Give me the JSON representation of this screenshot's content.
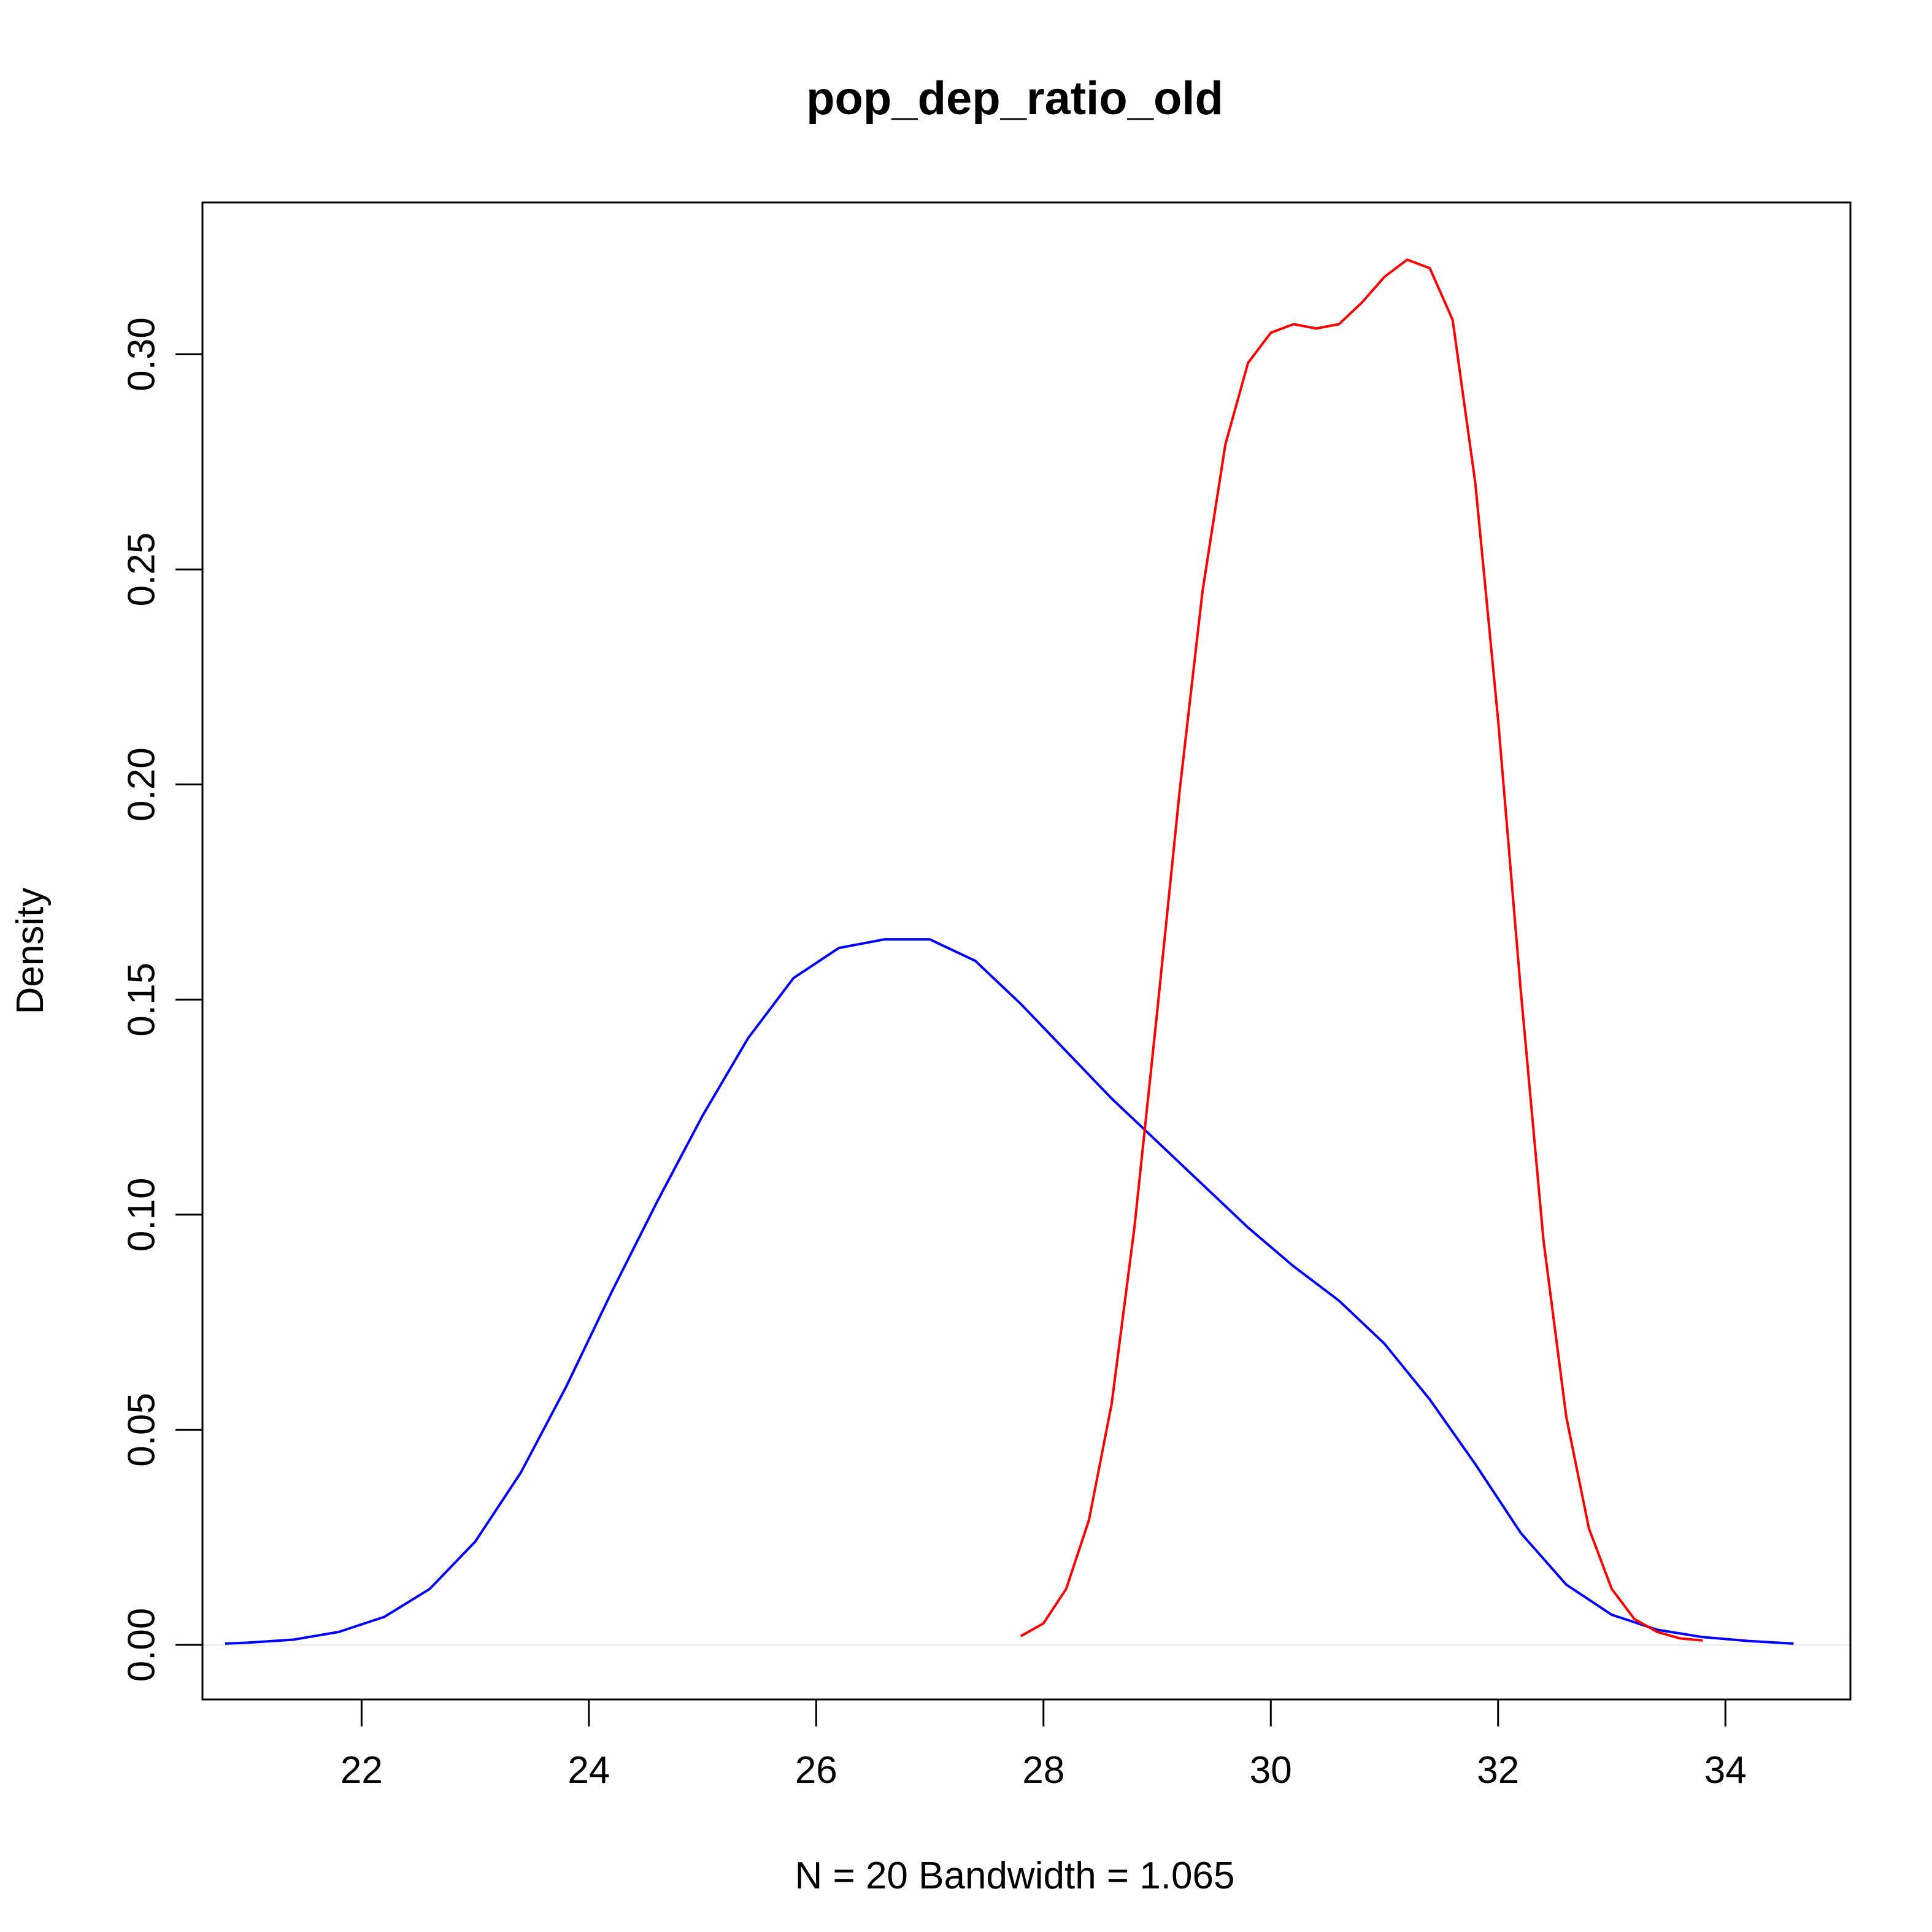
{
  "chart_data": {
    "type": "line",
    "title": "pop_dep_ratio_old",
    "xlabel": "N = 20   Bandwidth = 1.065",
    "ylabel": "Density",
    "xlim": [
      20.6,
      35.1
    ],
    "ylim": [
      -0.0127,
      0.3353
    ],
    "grid": false,
    "legend": "none",
    "x_ticks": [
      {
        "value": 22,
        "label": "22"
      },
      {
        "value": 24,
        "label": "24"
      },
      {
        "value": 26,
        "label": "26"
      },
      {
        "value": 28,
        "label": "28"
      },
      {
        "value": 30,
        "label": "30"
      },
      {
        "value": 32,
        "label": "32"
      },
      {
        "value": 34,
        "label": "34"
      }
    ],
    "y_ticks": [
      {
        "value": 0.0,
        "label": "0.00"
      },
      {
        "value": 0.05,
        "label": "0.05"
      },
      {
        "value": 0.1,
        "label": "0.10"
      },
      {
        "value": 0.15,
        "label": "0.15"
      },
      {
        "value": 0.2,
        "label": "0.20"
      },
      {
        "value": 0.25,
        "label": "0.25"
      },
      {
        "value": 0.3,
        "label": "0.30"
      }
    ],
    "zero_line": {
      "y": 0,
      "color": "#eeeeee"
    },
    "series": [
      {
        "color": "#0000ff",
        "x": [
          20.8,
          21.0,
          21.4,
          21.8,
          22.2,
          22.6,
          23.0,
          23.4,
          23.8,
          24.2,
          24.6,
          25.0,
          25.4,
          25.8,
          26.2,
          26.6,
          27.0,
          27.4,
          27.8,
          28.2,
          28.6,
          29.0,
          29.4,
          29.8,
          30.2,
          30.6,
          31.0,
          31.4,
          31.8,
          32.2,
          32.6,
          33.0,
          33.4,
          33.8,
          34.2,
          34.6
        ],
        "y": [
          0.0003,
          0.0005,
          0.0012,
          0.003,
          0.0065,
          0.013,
          0.024,
          0.04,
          0.06,
          0.082,
          0.103,
          0.123,
          0.141,
          0.155,
          0.162,
          0.164,
          0.164,
          0.159,
          0.149,
          0.138,
          0.127,
          0.117,
          0.107,
          0.097,
          0.088,
          0.08,
          0.07,
          0.057,
          0.042,
          0.026,
          0.014,
          0.007,
          0.0035,
          0.0018,
          0.0009,
          0.0003
        ]
      },
      {
        "color": "#ff0000",
        "x": [
          27.8,
          28.0,
          28.2,
          28.4,
          28.6,
          28.8,
          29.0,
          29.2,
          29.4,
          29.6,
          29.8,
          30.0,
          30.2,
          30.4,
          30.6,
          30.8,
          31.0,
          31.2,
          31.4,
          31.6,
          31.8,
          32.0,
          32.2,
          32.4,
          32.6,
          32.8,
          33.0,
          33.2,
          33.4,
          33.6,
          33.8
        ],
        "y": [
          0.002,
          0.005,
          0.013,
          0.029,
          0.056,
          0.097,
          0.147,
          0.199,
          0.245,
          0.279,
          0.298,
          0.305,
          0.307,
          0.306,
          0.307,
          0.312,
          0.318,
          0.322,
          0.32,
          0.308,
          0.27,
          0.215,
          0.152,
          0.094,
          0.053,
          0.027,
          0.013,
          0.006,
          0.003,
          0.0015,
          0.001
        ]
      }
    ]
  }
}
